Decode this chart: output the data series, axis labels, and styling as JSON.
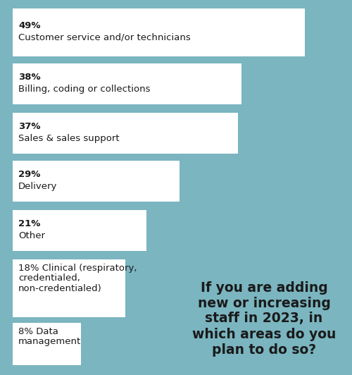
{
  "background_color": "#7ab5c0",
  "bar_color": "#ffffff",
  "text_color": "#1a1a1a",
  "bars": [
    {
      "value": 49,
      "pct_label": "49%",
      "desc_label": "Customer service and/or technicians",
      "multiline": false
    },
    {
      "value": 38,
      "pct_label": "38%",
      "desc_label": "Billing, coding or collections",
      "multiline": false
    },
    {
      "value": 37,
      "pct_label": "37%",
      "desc_label": "Sales & sales support",
      "multiline": false
    },
    {
      "value": 29,
      "pct_label": "29%",
      "desc_label": "Delivery",
      "multiline": false
    },
    {
      "value": 21,
      "pct_label": "21%",
      "desc_label": "Other",
      "multiline": false
    },
    {
      "value": 18,
      "pct_label": "18%",
      "desc_label": "Clinical (respiratory,\ncredentialed,\nnon-credentialed)",
      "multiline": true
    },
    {
      "value": 8,
      "pct_label": "8%",
      "desc_label": "Data\nmanagement",
      "multiline": true
    }
  ],
  "max_pct": 49,
  "question_text": "If you are adding\nnew or increasing\nstaff in 2023, in\nwhich areas do you\nplan to do so?",
  "question_fontsize": 13.5,
  "pct_fontsize": 9.5,
  "desc_fontsize": 9.5
}
